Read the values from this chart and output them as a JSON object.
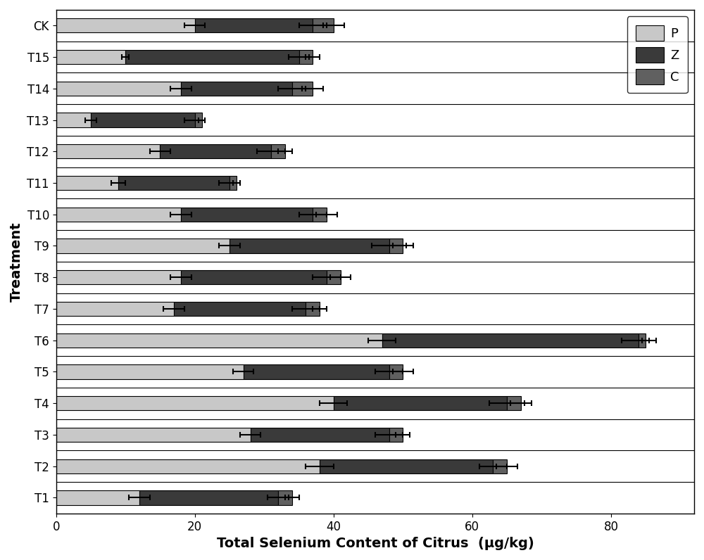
{
  "treatments": [
    "T1",
    "T2",
    "T3",
    "T4",
    "T5",
    "T6",
    "T7",
    "T8",
    "T9",
    "T10",
    "T11",
    "T12",
    "T13",
    "T14",
    "T15",
    "CK"
  ],
  "P_values": [
    12.0,
    38.0,
    28.0,
    40.0,
    27.0,
    47.0,
    17.0,
    18.0,
    25.0,
    18.0,
    9.0,
    15.0,
    5.0,
    18.0,
    10.0,
    20.0
  ],
  "Z_values": [
    20.0,
    25.0,
    20.0,
    25.0,
    21.0,
    37.0,
    19.0,
    21.0,
    23.0,
    19.0,
    16.0,
    16.0,
    15.0,
    16.0,
    25.0,
    17.0
  ],
  "C_values": [
    2.0,
    2.0,
    2.0,
    2.0,
    2.0,
    1.0,
    2.0,
    2.0,
    2.0,
    2.0,
    1.0,
    2.0,
    1.0,
    3.0,
    2.0,
    3.0
  ],
  "P_errors": [
    1.5,
    2.0,
    1.5,
    2.0,
    1.5,
    2.0,
    1.5,
    1.5,
    1.5,
    1.5,
    1.0,
    1.5,
    0.8,
    1.5,
    0.5,
    1.5
  ],
  "Z_errors": [
    1.5,
    2.0,
    2.0,
    2.5,
    2.0,
    2.5,
    2.0,
    2.0,
    2.5,
    2.0,
    1.5,
    2.0,
    1.5,
    2.0,
    1.5,
    2.0
  ],
  "C_errors": [
    1.0,
    1.5,
    1.0,
    1.5,
    1.5,
    0.5,
    1.0,
    1.5,
    1.5,
    1.5,
    0.5,
    1.0,
    0.5,
    1.5,
    1.0,
    1.5
  ],
  "color_P": "#C8C8C8",
  "color_Z": "#3A3A3A",
  "color_C": "#606060",
  "xlabel": "Total Selenium Content of Citrus  (μg/kg)",
  "ylabel": "Treatment",
  "xlim_max": 92,
  "xticks": [
    0,
    20,
    40,
    60,
    80
  ],
  "bar_height": 0.45,
  "legend_labels": [
    "P",
    "Z",
    "C"
  ],
  "background_color": "#ffffff",
  "tick_fontsize": 12,
  "label_fontsize": 14,
  "separator_linewidth": 0.8,
  "errorbar_capsize": 3,
  "errorbar_capthick": 1.5,
  "errorbar_elinewidth": 1.5
}
